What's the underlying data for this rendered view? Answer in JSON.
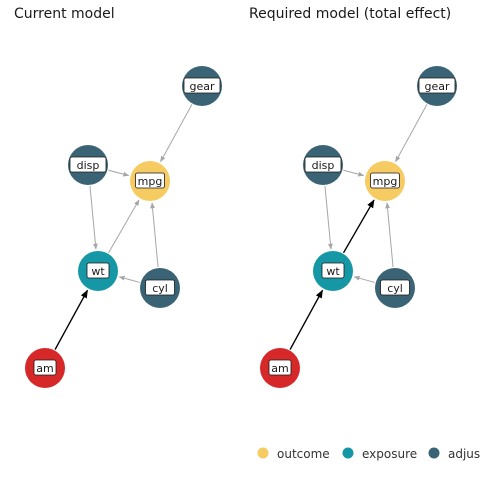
{
  "panels": [
    {
      "title": "Current model",
      "nodes": [
        {
          "id": "gear",
          "label": "gear",
          "role": "adjusted"
        },
        {
          "id": "disp",
          "label": "disp",
          "role": "adjusted"
        },
        {
          "id": "mpg",
          "label": "mpg",
          "role": "outcome"
        },
        {
          "id": "wt",
          "label": "wt",
          "role": "exposure"
        },
        {
          "id": "cyl",
          "label": "cyl",
          "role": "adjusted"
        },
        {
          "id": "am",
          "label": "am",
          "role": "adjusted_red"
        }
      ],
      "edges": [
        {
          "from": "gear",
          "to": "mpg",
          "highlight": false
        },
        {
          "from": "disp",
          "to": "mpg",
          "highlight": false
        },
        {
          "from": "disp",
          "to": "wt",
          "highlight": false
        },
        {
          "from": "wt",
          "to": "mpg",
          "highlight": false
        },
        {
          "from": "cyl",
          "to": "mpg",
          "highlight": false
        },
        {
          "from": "cyl",
          "to": "wt",
          "highlight": false
        },
        {
          "from": "am",
          "to": "wt",
          "highlight": true
        }
      ]
    },
    {
      "title": "Required model (total effect)",
      "nodes": [
        {
          "id": "gear",
          "label": "gear",
          "role": "adjusted"
        },
        {
          "id": "disp",
          "label": "disp",
          "role": "adjusted"
        },
        {
          "id": "mpg",
          "label": "mpg",
          "role": "outcome"
        },
        {
          "id": "wt",
          "label": "wt",
          "role": "exposure"
        },
        {
          "id": "cyl",
          "label": "cyl",
          "role": "adjusted"
        },
        {
          "id": "am",
          "label": "am",
          "role": "adjusted_red"
        }
      ],
      "edges": [
        {
          "from": "gear",
          "to": "mpg",
          "highlight": false
        },
        {
          "from": "disp",
          "to": "mpg",
          "highlight": false
        },
        {
          "from": "disp",
          "to": "wt",
          "highlight": false
        },
        {
          "from": "wt",
          "to": "mpg",
          "highlight": true
        },
        {
          "from": "cyl",
          "to": "mpg",
          "highlight": false
        },
        {
          "from": "cyl",
          "to": "wt",
          "highlight": false
        },
        {
          "from": "am",
          "to": "wt",
          "highlight": true
        }
      ]
    }
  ],
  "legend": [
    {
      "label": "outcome",
      "color": "#F6CB61"
    },
    {
      "label": "exposure",
      "color": "#1697A6"
    },
    {
      "label": "adjus",
      "color": "#3A6475"
    }
  ],
  "colors": {
    "outcome": "#F6CB61",
    "exposure": "#1697A6",
    "adjusted": "#3A6475",
    "adjusted_red": "#D62828",
    "edge": "#A6A6A6",
    "edge_highlight": "#000000"
  }
}
